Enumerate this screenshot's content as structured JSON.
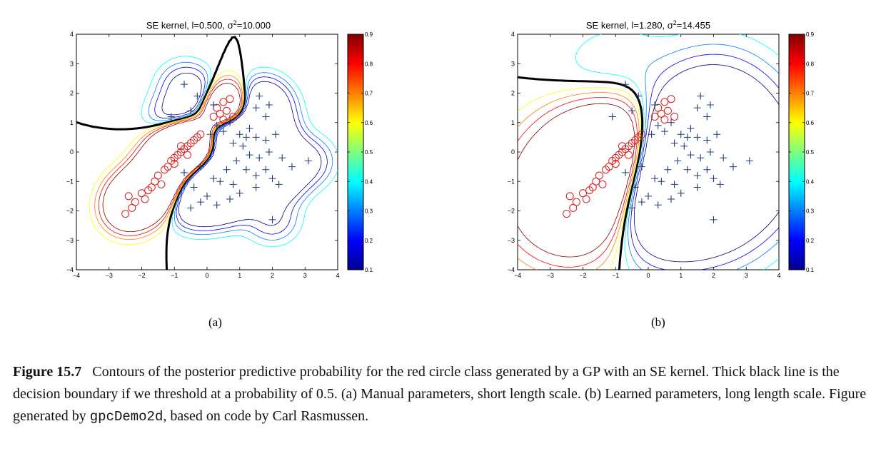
{
  "chart_data": [
    {
      "type": "contour",
      "title": "SE kernel, l=0.500, σ²=10.000",
      "title_parts": {
        "prefix": "SE kernel, l=0.500, σ",
        "sup": "2",
        "suffix": "=10.000"
      },
      "xlim": [
        -4,
        4
      ],
      "ylim": [
        -4,
        4
      ],
      "xticks": [
        -4,
        -3,
        -2,
        -1,
        0,
        1,
        2,
        3,
        4
      ],
      "yticks": [
        -4,
        -3,
        -2,
        -1,
        0,
        1,
        2,
        3,
        4
      ],
      "colorbar": {
        "range": [
          0.1,
          0.9
        ],
        "ticks": [
          "0.9",
          "0.8",
          "0.7",
          "0.6",
          "0.5",
          "0.4",
          "0.3",
          "0.2",
          "0.1"
        ]
      },
      "length_scale": 0.5,
      "sublabel": "(a)"
    },
    {
      "type": "contour",
      "title": "SE kernel, l=1.280, σ²=14.455",
      "title_parts": {
        "prefix": "SE kernel, l=1.280, σ",
        "sup": "2",
        "suffix": "=14.455"
      },
      "xlim": [
        -4,
        4
      ],
      "ylim": [
        -4,
        4
      ],
      "xticks": [
        -4,
        -3,
        -2,
        -1,
        0,
        1,
        2,
        3,
        4
      ],
      "yticks": [
        -4,
        -3,
        -2,
        -1,
        0,
        1,
        2,
        3,
        4
      ],
      "colorbar": {
        "range": [
          0.1,
          0.9
        ],
        "ticks": [
          "0.9",
          "0.8",
          "0.7",
          "0.6",
          "0.5",
          "0.4",
          "0.3",
          "0.2",
          "0.1"
        ]
      },
      "length_scale": 1.28,
      "sublabel": "(b)"
    }
  ],
  "points": {
    "circles": [
      [
        -2.4,
        -1.5
      ],
      [
        -2.3,
        -1.9
      ],
      [
        -2.2,
        -1.7
      ],
      [
        -2.0,
        -1.4
      ],
      [
        -1.9,
        -1.6
      ],
      [
        -1.8,
        -1.3
      ],
      [
        -1.7,
        -1.2
      ],
      [
        -1.6,
        -1.0
      ],
      [
        -1.5,
        -0.8
      ],
      [
        -1.4,
        -1.1
      ],
      [
        -1.3,
        -0.6
      ],
      [
        -1.2,
        -0.5
      ],
      [
        -1.1,
        -0.3
      ],
      [
        -1.0,
        -0.2
      ],
      [
        -0.9,
        -0.1
      ],
      [
        -0.8,
        0.0
      ],
      [
        -0.7,
        0.1
      ],
      [
        -0.6,
        0.2
      ],
      [
        -0.5,
        0.3
      ],
      [
        -0.4,
        0.4
      ],
      [
        -0.3,
        0.5
      ],
      [
        -0.2,
        0.6
      ],
      [
        -0.6,
        -0.1
      ],
      [
        -1.0,
        -0.4
      ],
      [
        -0.8,
        0.2
      ],
      [
        0.2,
        1.2
      ],
      [
        0.3,
        1.5
      ],
      [
        0.4,
        1.3
      ],
      [
        0.5,
        1.7
      ],
      [
        0.6,
        1.4
      ],
      [
        0.7,
        1.8
      ],
      [
        0.5,
        1.1
      ],
      [
        0.8,
        1.2
      ],
      [
        -2.5,
        -2.1
      ]
    ],
    "pluses": [
      [
        -0.7,
        2.3
      ],
      [
        -0.3,
        1.9
      ],
      [
        -1.1,
        1.2
      ],
      [
        -0.5,
        1.4
      ],
      [
        0.2,
        1.6
      ],
      [
        0.3,
        0.9
      ],
      [
        0.5,
        0.7
      ],
      [
        0.7,
        1.0
      ],
      [
        1.0,
        0.6
      ],
      [
        1.3,
        0.8
      ],
      [
        1.5,
        1.5
      ],
      [
        1.8,
        1.2
      ],
      [
        1.6,
        1.9
      ],
      [
        1.9,
        1.6
      ],
      [
        1.2,
        0.5
      ],
      [
        0.8,
        0.3
      ],
      [
        1.5,
        0.5
      ],
      [
        1.8,
        0.4
      ],
      [
        2.1,
        0.6
      ],
      [
        1.1,
        0.2
      ],
      [
        1.3,
        -0.1
      ],
      [
        1.6,
        -0.2
      ],
      [
        1.9,
        0.0
      ],
      [
        2.3,
        -0.2
      ],
      [
        2.6,
        -0.5
      ],
      [
        3.1,
        -0.3
      ],
      [
        0.9,
        -0.3
      ],
      [
        1.2,
        -0.6
      ],
      [
        1.5,
        -0.8
      ],
      [
        1.8,
        -0.6
      ],
      [
        2.0,
        -0.9
      ],
      [
        0.6,
        -0.6
      ],
      [
        0.4,
        -1.0
      ],
      [
        0.8,
        -1.1
      ],
      [
        1.0,
        -1.4
      ],
      [
        0.2,
        -0.9
      ],
      [
        -0.2,
        -0.5
      ],
      [
        -0.7,
        -0.7
      ],
      [
        -0.4,
        -1.2
      ],
      [
        0.0,
        -1.5
      ],
      [
        0.3,
        -1.8
      ],
      [
        0.7,
        -1.6
      ],
      [
        -0.5,
        -1.9
      ],
      [
        -0.2,
        -1.7
      ],
      [
        2.0,
        -2.3
      ],
      [
        1.5,
        -1.2
      ],
      [
        2.2,
        -1.1
      ],
      [
        0.1,
        0.6
      ]
    ]
  },
  "caption": {
    "figure_label": "Figure 15.7",
    "text_1": "Contours of the posterior predictive probability for the red circle class generated by a GP with an SE kernel. Thick black line is the decision boundary if we threshold at a probability of 0.5. (a) Manual parameters, short length scale. (b) Learned parameters, long length scale. Figure generated by ",
    "code": "gpcDemo2d",
    "text_2": ", based on code by Carl Rasmussen."
  }
}
